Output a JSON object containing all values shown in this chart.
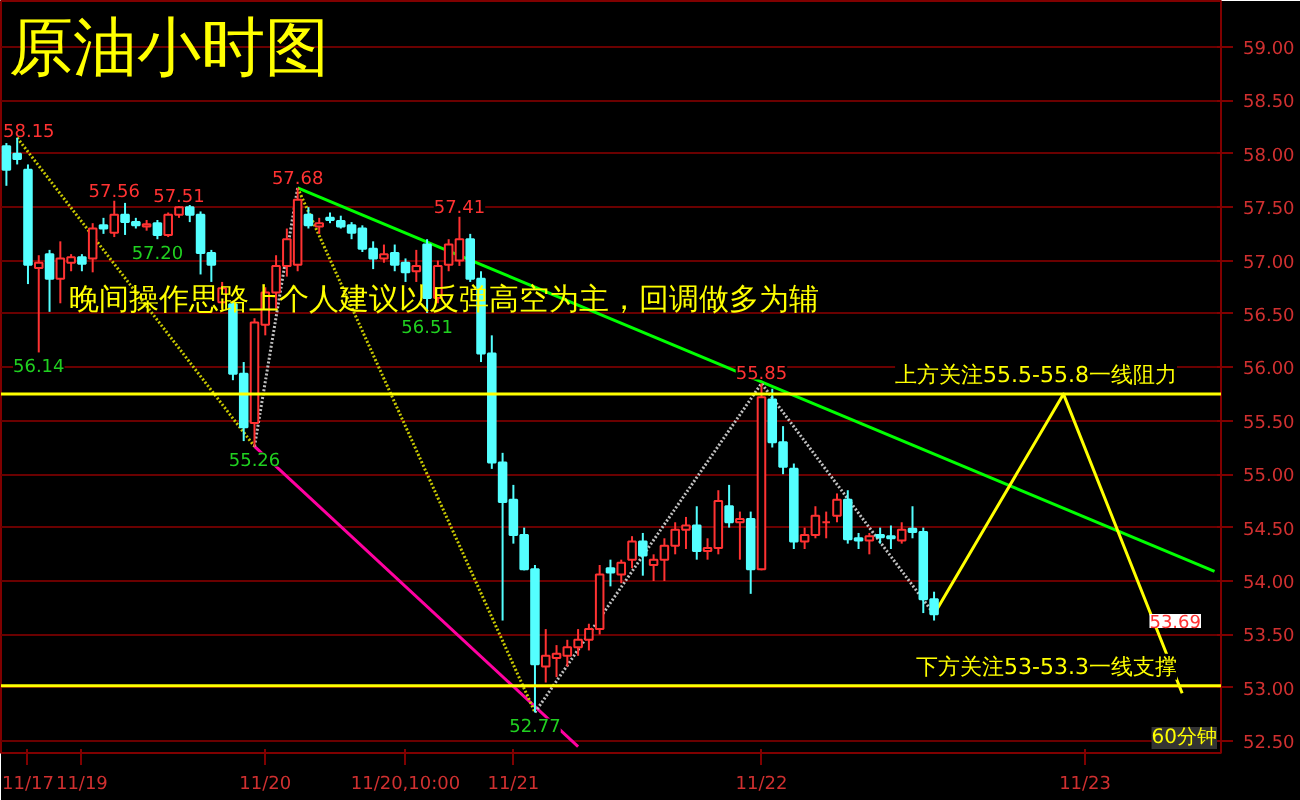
{
  "chart_data": {
    "type": "candlestick",
    "title": "原油小时图",
    "annotations": [
      "晚间操作思路上个人建议以反弹高空为主，回调做多为辅",
      "60分钟",
      "58.15",
      {
        "text": "56.14",
        "y": 56.14
      },
      {
        "text": "57.56",
        "y": 57.56
      },
      {
        "text": "57.20",
        "y": 57.2
      },
      {
        "text": "57.51",
        "y": 57.51
      },
      {
        "text": "55.26",
        "y": 55.26
      },
      {
        "text": "57.68",
        "y": 57.68
      },
      {
        "text": "56.51",
        "y": 56.51
      },
      {
        "text": "57.41",
        "y": 57.41
      },
      {
        "text": "52.77",
        "y": 52.77
      },
      {
        "text": "55.85",
        "y": 55.85
      },
      "53.69"
    ],
    "categories": [
      null,
      null,
      "11/17",
      null,
      null,
      null,
      null,
      "11/19",
      null,
      null,
      null,
      null,
      null,
      null,
      null,
      null,
      null,
      null,
      null,
      null,
      null,
      null,
      null,
      null,
      "11/20",
      null,
      null,
      null,
      null,
      null,
      null,
      null,
      null,
      null,
      null,
      null,
      null,
      "11/20,10:00",
      null,
      null,
      null,
      null,
      null,
      null,
      null,
      null,
      null,
      "11/21",
      null,
      null,
      null,
      null,
      null,
      null,
      null,
      null,
      null,
      null,
      null,
      null,
      null,
      null,
      null,
      null,
      null,
      null,
      null,
      null,
      null,
      null,
      "11/22",
      null,
      null,
      null,
      null,
      null,
      null,
      null,
      null,
      null,
      null,
      null,
      null,
      null,
      null,
      null,
      null,
      null,
      null,
      null,
      null,
      null,
      null,
      null,
      null,
      null,
      null,
      null,
      null,
      null,
      "11/23",
      null,
      null,
      null,
      null,
      null,
      null,
      null,
      null,
      null,
      null,
      null,
      null
    ],
    "ohlc": [
      [
        58.07,
        58.1,
        57.7,
        57.85
      ],
      [
        58.0,
        58.15,
        57.9,
        57.95
      ],
      [
        57.85,
        57.9,
        56.78,
        56.96
      ],
      [
        56.93,
        57.05,
        56.14,
        56.98
      ],
      [
        57.06,
        57.1,
        56.52,
        56.83
      ],
      [
        56.83,
        57.18,
        56.6,
        57.02
      ],
      [
        56.98,
        57.06,
        56.9,
        57.03
      ],
      [
        57.03,
        57.06,
        56.9,
        56.97
      ],
      [
        57.02,
        57.35,
        56.89,
        57.3
      ],
      [
        57.33,
        57.4,
        57.25,
        57.3
      ],
      [
        57.26,
        57.56,
        57.22,
        57.43
      ],
      [
        57.43,
        57.54,
        57.24,
        57.36
      ],
      [
        57.36,
        57.4,
        57.3,
        57.33
      ],
      [
        57.32,
        57.38,
        57.28,
        57.34
      ],
      [
        57.35,
        57.38,
        57.2,
        57.24
      ],
      [
        57.24,
        57.45,
        57.22,
        57.43
      ],
      [
        57.43,
        57.51,
        57.4,
        57.5
      ],
      [
        57.5,
        57.52,
        57.36,
        57.43
      ],
      [
        57.43,
        57.46,
        56.87,
        57.07
      ],
      [
        57.07,
        57.1,
        56.8,
        56.96
      ],
      [
        56.61,
        56.8,
        56.55,
        56.74
      ],
      [
        56.59,
        56.62,
        55.88,
        55.94
      ],
      [
        55.94,
        56.05,
        55.31,
        55.44
      ],
      [
        55.48,
        56.46,
        55.26,
        56.42
      ],
      [
        56.4,
        56.75,
        56.3,
        56.7
      ],
      [
        56.7,
        57.05,
        56.55,
        56.95
      ],
      [
        56.95,
        57.3,
        56.85,
        57.2
      ],
      [
        56.96,
        57.68,
        56.9,
        57.57
      ],
      [
        57.43,
        57.5,
        57.3,
        57.33
      ],
      [
        57.32,
        57.4,
        57.25,
        57.35
      ],
      [
        57.4,
        57.45,
        57.35,
        57.38
      ],
      [
        57.37,
        57.42,
        57.3,
        57.32
      ],
      [
        57.33,
        57.36,
        57.2,
        57.26
      ],
      [
        57.3,
        57.33,
        57.08,
        57.11
      ],
      [
        57.11,
        57.18,
        56.92,
        57.02
      ],
      [
        57.02,
        57.15,
        56.98,
        57.06
      ],
      [
        57.07,
        57.15,
        56.9,
        56.96
      ],
      [
        56.98,
        57.02,
        56.8,
        56.89
      ],
      [
        56.9,
        57.1,
        56.8,
        56.95
      ],
      [
        57.15,
        57.2,
        56.51,
        56.65
      ],
      [
        56.65,
        57.0,
        56.6,
        56.95
      ],
      [
        56.96,
        57.2,
        56.9,
        57.15
      ],
      [
        57.0,
        57.41,
        56.95,
        57.2
      ],
      [
        57.2,
        57.25,
        56.8,
        56.83
      ],
      [
        56.83,
        56.9,
        56.05,
        56.13
      ],
      [
        56.13,
        56.3,
        55.05,
        55.11
      ],
      [
        55.11,
        55.2,
        53.63,
        54.74
      ],
      [
        54.76,
        54.9,
        54.35,
        54.43
      ],
      [
        54.43,
        54.5,
        54.1,
        54.11
      ],
      [
        54.11,
        54.15,
        52.77,
        53.22
      ],
      [
        53.2,
        53.55,
        53.05,
        53.3
      ],
      [
        53.28,
        53.4,
        53.1,
        53.32
      ],
      [
        53.3,
        53.45,
        53.2,
        53.38
      ],
      [
        53.38,
        53.55,
        53.3,
        53.45
      ],
      [
        53.45,
        53.6,
        53.35,
        53.55
      ],
      [
        53.55,
        54.15,
        53.5,
        54.06
      ],
      [
        54.12,
        54.2,
        53.95,
        54.08
      ],
      [
        54.06,
        54.2,
        53.98,
        54.17
      ],
      [
        54.2,
        54.42,
        54.12,
        54.37
      ],
      [
        54.37,
        54.45,
        54.05,
        54.24
      ],
      [
        54.15,
        54.25,
        54.0,
        54.2
      ],
      [
        54.2,
        54.4,
        54.0,
        54.33
      ],
      [
        54.33,
        54.55,
        54.25,
        54.48
      ],
      [
        54.48,
        54.6,
        54.3,
        54.52
      ],
      [
        54.52,
        54.7,
        54.2,
        54.28
      ],
      [
        54.28,
        54.4,
        54.2,
        54.31
      ],
      [
        54.31,
        54.85,
        54.25,
        54.75
      ],
      [
        54.7,
        54.9,
        54.5,
        54.55
      ],
      [
        54.55,
        54.65,
        54.2,
        54.58
      ],
      [
        54.58,
        54.65,
        53.88,
        54.11
      ],
      [
        54.11,
        55.85,
        54.1,
        55.72
      ],
      [
        55.7,
        55.8,
        55.25,
        55.3
      ],
      [
        55.3,
        55.45,
        55.0,
        55.07
      ],
      [
        55.05,
        55.1,
        54.3,
        54.37
      ],
      [
        54.37,
        54.5,
        54.3,
        54.43
      ],
      [
        54.43,
        54.7,
        54.4,
        54.61
      ],
      [
        54.55,
        54.65,
        54.4,
        54.55
      ],
      [
        54.61,
        54.82,
        54.55,
        54.76
      ],
      [
        54.76,
        54.85,
        54.35,
        54.39
      ],
      [
        54.4,
        54.45,
        54.3,
        54.38
      ],
      [
        54.38,
        54.45,
        54.25,
        54.42
      ],
      [
        54.43,
        54.5,
        54.35,
        54.41
      ],
      [
        54.42,
        54.52,
        54.3,
        54.4
      ],
      [
        54.38,
        54.55,
        54.35,
        54.48
      ],
      [
        54.49,
        54.7,
        54.4,
        54.46
      ],
      [
        54.46,
        54.5,
        53.7,
        53.83
      ],
      [
        53.83,
        53.9,
        53.63,
        53.69
      ],
      null,
      null,
      null,
      null,
      null,
      null,
      null,
      null,
      null,
      null,
      null,
      null,
      null,
      null,
      null,
      null,
      null,
      null,
      null,
      null,
      null,
      null,
      null,
      null,
      null,
      null
    ],
    "series": [
      {
        "type": "line",
        "color": "#00ff00",
        "line_style": "solid",
        "values": [
          null,
          null,
          null,
          null,
          null,
          null,
          null,
          null,
          null,
          null,
          null,
          null,
          null,
          null,
          null,
          null,
          null,
          null,
          null,
          null,
          null,
          null,
          null,
          null,
          null,
          null,
          null,
          57.68,
          null,
          null,
          null,
          null,
          null,
          null,
          null,
          null,
          null,
          null,
          null,
          null,
          null,
          null,
          null,
          null,
          null,
          null,
          null,
          null,
          null,
          null,
          null,
          null,
          null,
          null,
          null,
          null,
          null,
          null,
          null,
          null,
          null,
          null,
          null,
          null,
          null,
          null,
          null,
          null,
          null,
          null,
          null,
          null,
          null,
          null,
          null,
          null,
          null,
          null,
          null,
          null,
          null,
          null,
          null,
          null,
          null,
          null,
          null,
          null,
          null,
          null,
          null,
          null,
          null,
          null,
          null,
          null,
          null,
          null,
          null,
          null,
          null,
          null,
          null,
          null,
          null,
          null,
          null,
          null,
          null,
          null,
          null,
          null,
          54.09
        ]
      },
      {
        "type": "line",
        "color": "#ff00a0",
        "line_style": "solid",
        "values": [
          null,
          null,
          null,
          null,
          null,
          null,
          null,
          null,
          null,
          null,
          null,
          null,
          null,
          null,
          null,
          null,
          null,
          null,
          null,
          null,
          null,
          null,
          null,
          55.26,
          null,
          null,
          null,
          null,
          null,
          null,
          null,
          null,
          null,
          null,
          null,
          null,
          null,
          null,
          null,
          null,
          null,
          null,
          null,
          null,
          null,
          null,
          null,
          null,
          null,
          null,
          null,
          null,
          null,
          52.45,
          null,
          null,
          null,
          null,
          null,
          null,
          null,
          null,
          null,
          null,
          null,
          null,
          null,
          null,
          null,
          null,
          null,
          null,
          null,
          null,
          null,
          null,
          null,
          null,
          null,
          null,
          null,
          null,
          null,
          null,
          null,
          null,
          null,
          null,
          null,
          null,
          null,
          null,
          null,
          null,
          null,
          null,
          null,
          null,
          null,
          null,
          null,
          null,
          null,
          null,
          null,
          null,
          null,
          null,
          null,
          null,
          null,
          null,
          null
        ]
      },
      {
        "type": "line",
        "color": "#c8c800",
        "line_style": "dotted",
        "values": [
          null,
          58.15,
          null,
          null,
          null,
          null,
          null,
          null,
          null,
          null,
          null,
          null,
          null,
          null,
          null,
          null,
          null,
          null,
          null,
          null,
          null,
          null,
          null,
          55.26,
          null,
          null,
          null,
          null,
          null,
          null,
          null,
          null,
          null,
          null,
          null,
          null,
          null,
          null,
          null,
          null,
          null,
          null,
          null,
          null,
          null,
          null,
          null,
          null,
          null,
          null,
          null,
          null,
          null,
          null,
          null,
          null,
          null,
          null,
          null,
          null,
          null,
          null,
          null,
          null,
          null,
          null,
          null,
          null,
          null,
          null,
          null,
          null,
          null,
          null,
          null,
          null,
          null,
          null,
          null,
          null,
          null,
          null,
          null,
          null,
          null,
          null,
          null,
          null,
          null,
          null,
          null,
          null,
          null,
          null,
          null,
          null,
          null,
          null,
          null,
          null,
          null,
          null,
          null,
          null,
          null,
          null,
          null,
          null,
          null,
          null,
          null,
          null,
          null
        ]
      },
      {
        "type": "line",
        "color": "#c8c800",
        "line_style": "dotted",
        "values": [
          null,
          null,
          null,
          null,
          null,
          null,
          null,
          null,
          null,
          null,
          null,
          null,
          null,
          null,
          null,
          null,
          null,
          null,
          null,
          null,
          null,
          null,
          null,
          null,
          null,
          null,
          null,
          57.68,
          null,
          null,
          null,
          null,
          null,
          null,
          null,
          null,
          null,
          null,
          null,
          null,
          null,
          null,
          null,
          null,
          null,
          null,
          null,
          null,
          null,
          52.77,
          null,
          null,
          null,
          null,
          null,
          null,
          null,
          null,
          null,
          null,
          null,
          null,
          null,
          null,
          null,
          null,
          null,
          null,
          null,
          null,
          null,
          null,
          null,
          null,
          null,
          null,
          null,
          null,
          null,
          null,
          null,
          null,
          null,
          null,
          null,
          null,
          null,
          null,
          null,
          null,
          null,
          null,
          null,
          null,
          null,
          null,
          null,
          null,
          null,
          null,
          null,
          null,
          null,
          null,
          null,
          null,
          null,
          null,
          null,
          null,
          null,
          null,
          null
        ]
      },
      {
        "type": "line",
        "color": "#c0c0c0",
        "line_style": "dotted",
        "values": [
          null,
          null,
          null,
          null,
          null,
          null,
          null,
          null,
          null,
          null,
          null,
          null,
          null,
          null,
          null,
          null,
          null,
          null,
          null,
          null,
          null,
          null,
          null,
          55.26,
          null,
          null,
          null,
          57.68,
          null,
          null,
          null,
          null,
          null,
          null,
          null,
          null,
          null,
          null,
          null,
          null,
          null,
          null,
          null,
          null,
          null,
          null,
          null,
          null,
          null,
          null,
          null,
          null,
          null,
          null,
          null,
          null,
          null,
          null,
          null,
          null,
          null,
          null,
          null,
          null,
          null,
          null,
          null,
          null,
          null,
          null,
          null,
          null,
          null,
          null,
          null,
          null,
          null,
          null,
          null,
          null,
          null,
          null,
          null,
          null,
          null,
          null,
          null,
          null,
          null,
          null,
          null,
          null,
          null,
          null,
          null,
          null,
          null,
          null,
          null,
          null,
          null,
          null,
          null,
          null,
          null,
          null,
          null,
          null,
          null,
          null,
          null,
          null,
          null
        ]
      },
      {
        "type": "line",
        "color": "#c0c0c0",
        "line_style": "dotted",
        "values": [
          null,
          null,
          null,
          null,
          null,
          null,
          null,
          null,
          null,
          null,
          null,
          null,
          null,
          null,
          null,
          null,
          null,
          null,
          null,
          null,
          null,
          null,
          null,
          null,
          null,
          null,
          null,
          null,
          null,
          null,
          null,
          null,
          null,
          null,
          null,
          null,
          null,
          null,
          null,
          null,
          null,
          null,
          null,
          null,
          null,
          null,
          null,
          null,
          null,
          52.77,
          null,
          null,
          null,
          null,
          null,
          null,
          null,
          null,
          null,
          null,
          null,
          null,
          null,
          null,
          null,
          null,
          null,
          null,
          null,
          null,
          55.85,
          null,
          null,
          null,
          null,
          null,
          null,
          null,
          null,
          null,
          null,
          null,
          null,
          null,
          null,
          null,
          53.69,
          null,
          null,
          null,
          null,
          null,
          null,
          null,
          null,
          null,
          null,
          null,
          null,
          null,
          null,
          null,
          null,
          null,
          null,
          null,
          null,
          null,
          null,
          null,
          null,
          null,
          null
        ]
      },
      {
        "type": "line",
        "color": "#ffff00",
        "line_style": "solid",
        "values": [
          null,
          null,
          null,
          null,
          null,
          null,
          null,
          null,
          null,
          null,
          null,
          null,
          null,
          null,
          null,
          null,
          null,
          null,
          null,
          null,
          null,
          null,
          null,
          null,
          null,
          null,
          null,
          null,
          null,
          null,
          null,
          null,
          null,
          null,
          null,
          null,
          null,
          null,
          null,
          null,
          null,
          null,
          null,
          null,
          null,
          null,
          null,
          null,
          null,
          null,
          null,
          null,
          null,
          null,
          null,
          null,
          null,
          null,
          null,
          null,
          null,
          null,
          null,
          null,
          null,
          null,
          null,
          null,
          null,
          null,
          null,
          null,
          null,
          null,
          null,
          null,
          null,
          null,
          null,
          null,
          null,
          null,
          null,
          null,
          null,
          null,
          53.69,
          null,
          null,
          null,
          null,
          null,
          null,
          null,
          null,
          null,
          null,
          null,
          55.75,
          null,
          null,
          null,
          null,
          null,
          null,
          null,
          null,
          null,
          null,
          52.95,
          null,
          null,
          null
        ]
      }
    ],
    "ref_lines": [
      {
        "axis": "y",
        "value": 55.75,
        "label": "上方关注55.5-55.8一线阻力",
        "color": "#ffff00"
      },
      {
        "axis": "y",
        "value": 53.02,
        "label": "下方关注53-53.3一线支撑",
        "color": "#ffff00"
      }
    ],
    "ylim": [
      52.39,
      59.43
    ],
    "yticks": [
      {
        "value": 52.5,
        "label": "52.50"
      },
      {
        "value": 53,
        "label": "53.00"
      },
      {
        "value": 53.5,
        "label": "53.50"
      },
      {
        "value": 54,
        "label": "54.00"
      },
      {
        "value": 54.5,
        "label": "54.50"
      },
      {
        "value": 55,
        "label": "55.00"
      },
      {
        "value": 55.5,
        "label": "55.50"
      },
      {
        "value": 56,
        "label": "56.00"
      },
      {
        "value": 56.5,
        "label": "56.50"
      },
      {
        "value": 57,
        "label": "57.00"
      },
      {
        "value": 57.5,
        "label": "57.50"
      },
      {
        "value": 58,
        "label": "58.00"
      },
      {
        "value": 58.5,
        "label": "58.50"
      },
      {
        "value": 59,
        "label": "59.00"
      }
    ],
    "grid": "y"
  }
}
